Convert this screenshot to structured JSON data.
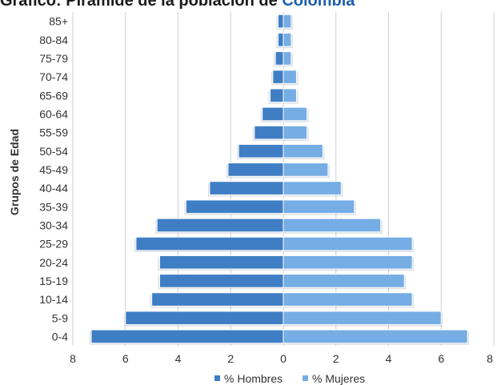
{
  "title": {
    "part1": "Gráfico: Pirámide de la población de ",
    "part2": "Colombia"
  },
  "chart_data": {
    "type": "bar",
    "orientation": "horizontal-pyramid",
    "ylabel": "Grupos de Edad",
    "xlim": [
      -8,
      8
    ],
    "xticks": [
      "8",
      "6",
      "4",
      "2",
      "0",
      "2",
      "4",
      "6",
      "8"
    ],
    "grid": true,
    "legend_position": "bottom",
    "categories": [
      "0-4",
      "5-9",
      "10-14",
      "15-19",
      "20-24",
      "25-29",
      "30-34",
      "35-39",
      "40-44",
      "45-49",
      "50-54",
      "55-59",
      "60-64",
      "65-69",
      "70-74",
      "75-79",
      "80-84",
      "85+"
    ],
    "series": [
      {
        "name": "% Hombres",
        "color": "#3f7ec4",
        "values": [
          7.3,
          6.0,
          5.0,
          4.7,
          4.7,
          5.6,
          4.8,
          3.7,
          2.8,
          2.1,
          1.7,
          1.1,
          0.8,
          0.5,
          0.4,
          0.3,
          0.2,
          0.2
        ]
      },
      {
        "name": "% Mujeres",
        "color": "#75ade4",
        "values": [
          7.0,
          6.0,
          4.9,
          4.6,
          4.9,
          4.9,
          3.7,
          2.7,
          2.2,
          1.7,
          1.5,
          0.9,
          0.9,
          0.5,
          0.5,
          0.3,
          0.3,
          0.3
        ]
      }
    ]
  }
}
